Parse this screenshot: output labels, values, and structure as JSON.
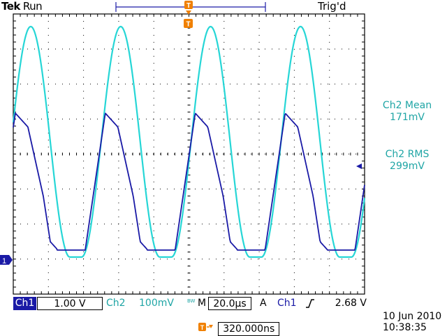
{
  "header": {
    "brand": "Tek",
    "acq_state": "Run",
    "trigger_state": "Trig'd"
  },
  "measurements": [
    {
      "label": "Ch2 Mean",
      "value": "171mV"
    },
    {
      "label": "Ch2 RMS",
      "value": "299mV"
    }
  ],
  "markers": {
    "ch1_marker": "1",
    "trigger_marker": "T"
  },
  "status_bar": {
    "ch1_label": "Ch1",
    "ch1_scale": "1.00 V",
    "ch2_label": "Ch2",
    "ch2_scale": "100mV",
    "bandwidth_mark": "BW",
    "timebase_prefix": "M",
    "timebase": "20.0µs",
    "acq_mode": "A",
    "trigger_source": "Ch1",
    "trigger_slope_icon": "rising-edge-icon",
    "trigger_level": "2.68 V"
  },
  "trigger_position": {
    "icon": "trigger-position-icon",
    "value": "320.000ns"
  },
  "datetime": {
    "date": "10 Jun  2010",
    "time": "10:38:35"
  },
  "colors": {
    "ch1": "#1a1aa6",
    "ch2": "#26d6d6",
    "trigger": "#f08000",
    "graticule": "#000000"
  },
  "chart_data": {
    "type": "line",
    "x_divisions": 10,
    "y_divisions": 8,
    "series": [
      {
        "name": "Ch1",
        "shape": "sawtooth-with-flat-base",
        "period_div": 2.56
      },
      {
        "name": "Ch2",
        "shape": "half-sine-pulse",
        "period_div": 2.56
      }
    ]
  }
}
